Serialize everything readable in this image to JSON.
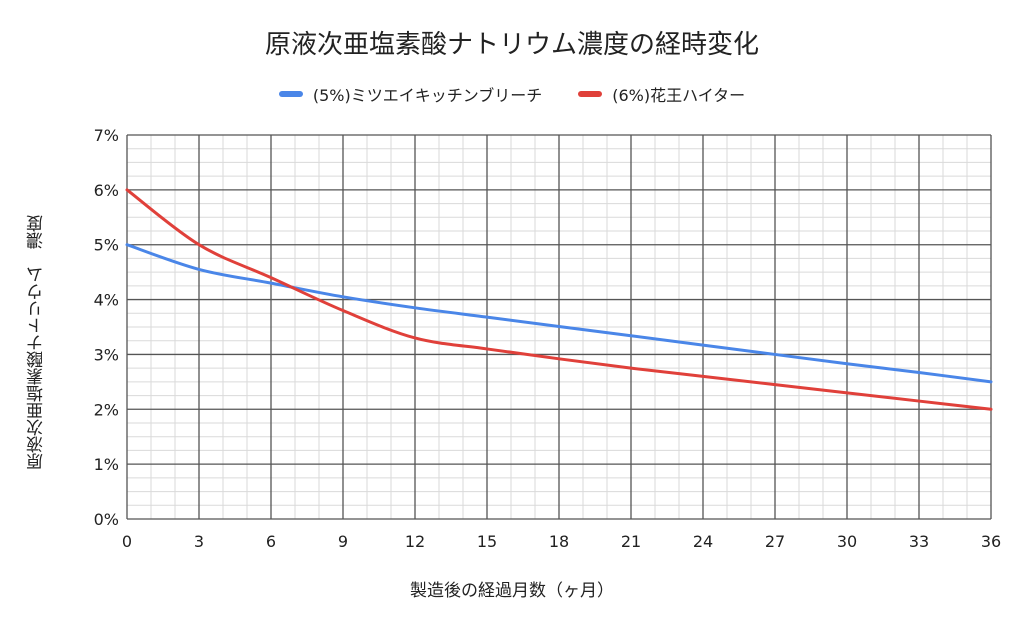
{
  "chart_data": {
    "type": "line",
    "title": "原液次亜塩素酸ナトリウム濃度の経時変化",
    "xlabel": "製造後の経過月数（ヶ月）",
    "ylabel": "原液次亜塩素酸ナトリウム　濃度",
    "xlim": [
      0,
      36
    ],
    "ylim": [
      0,
      7
    ],
    "x_ticks": [
      "0",
      "3",
      "6",
      "9",
      "12",
      "15",
      "18",
      "21",
      "24",
      "27",
      "30",
      "33",
      "36"
    ],
    "y_ticks": [
      "0%",
      "1%",
      "2%",
      "3%",
      "4%",
      "5%",
      "6%",
      "7%"
    ],
    "grid": true,
    "legend_position": "top",
    "series": [
      {
        "name": "(5%)ミツエイキッチンブリーチ",
        "color": "#4a86e8",
        "x": [
          0,
          3,
          6,
          9,
          12,
          15,
          18,
          21,
          24,
          27,
          30,
          33,
          36
        ],
        "y": [
          5.0,
          4.55,
          4.3,
          4.05,
          3.85,
          3.68,
          3.51,
          3.34,
          3.17,
          3.0,
          2.83,
          2.67,
          2.5
        ]
      },
      {
        "name": "(6%)花王ハイター",
        "color": "#e0403a",
        "x": [
          0,
          3,
          6,
          9,
          12,
          15,
          18,
          21,
          24,
          27,
          30,
          33,
          36
        ],
        "y": [
          6.0,
          5.0,
          4.4,
          3.8,
          3.3,
          3.1,
          2.92,
          2.75,
          2.6,
          2.45,
          2.3,
          2.15,
          2.0
        ]
      }
    ]
  }
}
